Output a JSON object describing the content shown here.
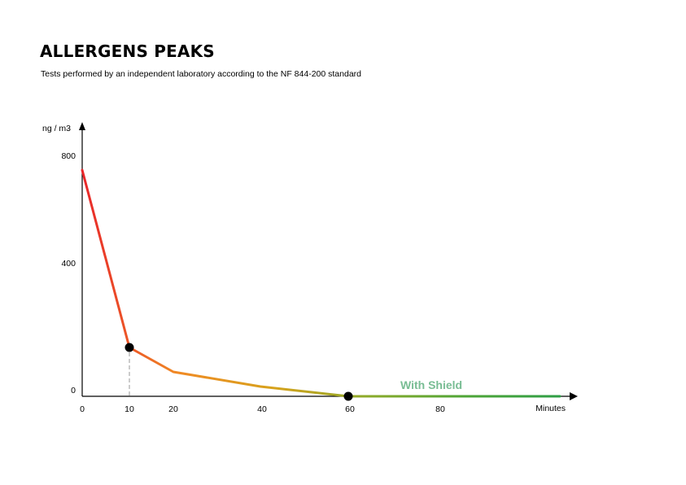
{
  "header": {
    "title": "ALLERGENS PEAKS",
    "subtitle": "Tests performed by an independent laboratory according to the NF 844-200 standard"
  },
  "chart_data": {
    "type": "line",
    "title": "ALLERGENS PEAKS",
    "subtitle": "Tests performed by an independent laboratory according to the NF 844-200 standard",
    "xlabel": "Minutes",
    "ylabel": "ng / m3",
    "x_ticks": [
      0,
      10,
      20,
      40,
      60,
      80
    ],
    "y_ticks": [
      0,
      400,
      800
    ],
    "xlim": [
      0,
      110
    ],
    "ylim": [
      0,
      850
    ],
    "grid": false,
    "series": [
      {
        "name": "With Shield",
        "x": [
          0,
          10,
          20,
          40,
          60,
          108
        ],
        "y": [
          740,
          155,
          80,
          35,
          0,
          0
        ]
      }
    ],
    "markers": [
      {
        "x": 10,
        "y": 155
      },
      {
        "x": 60,
        "y": 0
      }
    ],
    "gradient_colors": [
      "#e8262a",
      "#f08a24",
      "#d7a21c",
      "#8aaa2a",
      "#4ea536",
      "#2e9e46"
    ],
    "guide_color": "#999999",
    "series_label_color": "#79bd94"
  }
}
